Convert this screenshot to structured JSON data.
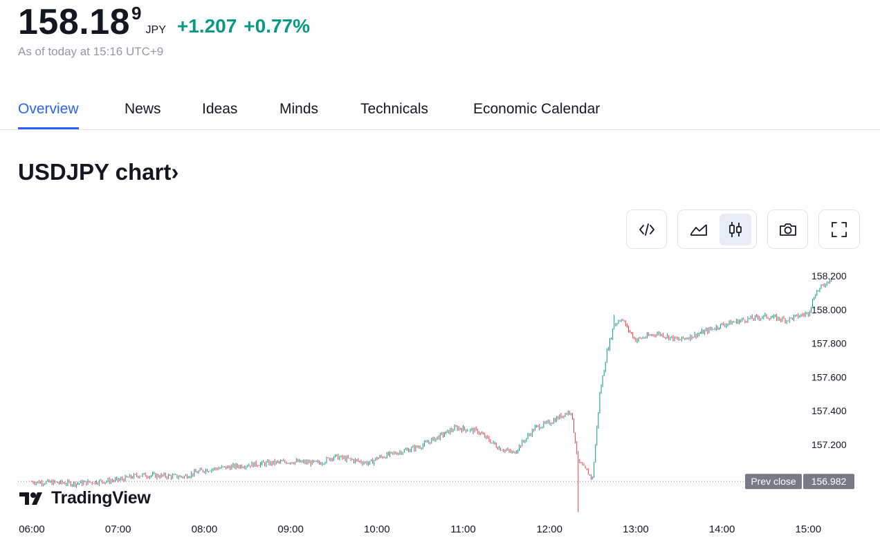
{
  "quote": {
    "price_main": "158.18",
    "price_sup": "9",
    "currency": "JPY",
    "change_abs": "+1.207",
    "change_pct": "+0.77%",
    "as_of": "As of today at 15:16 UTC+9",
    "change_color": "#089981"
  },
  "tabs": [
    {
      "label": "Overview",
      "active": true
    },
    {
      "label": "News"
    },
    {
      "label": "Ideas"
    },
    {
      "label": "Minds"
    },
    {
      "label": "Technicals"
    },
    {
      "label": "Economic Calendar"
    }
  ],
  "chart_title": "USDJPY chart›",
  "toolbar": {
    "icons": [
      "embed-code-icon",
      "area-chart-icon",
      "candlestick-icon",
      "camera-icon",
      "fullscreen-icon"
    ],
    "selected": "candlestick-icon"
  },
  "branding": {
    "logo_text": "TradingView"
  },
  "chart_data": {
    "type": "candlestick",
    "symbol": "USDJPY",
    "x_ticks": [
      "06:00",
      "07:00",
      "08:00",
      "09:00",
      "10:00",
      "11:00",
      "12:00",
      "13:00",
      "14:00",
      "15:00"
    ],
    "y_ticks": [
      "158.200",
      "158.000",
      "157.800",
      "157.600",
      "157.400",
      "157.200"
    ],
    "ylim": [
      156.78,
      158.28
    ],
    "prev_close": {
      "label": "Prev close",
      "value": "156.982"
    },
    "up_color": "#089981",
    "down_color": "#f23645",
    "close_path": [
      [
        "06:00",
        156.98
      ],
      [
        "06:30",
        156.97
      ],
      [
        "07:00",
        156.99
      ],
      [
        "07:15",
        157.02
      ],
      [
        "07:45",
        157.01
      ],
      [
        "08:00",
        157.05
      ],
      [
        "08:30",
        157.08
      ],
      [
        "08:45",
        157.09
      ],
      [
        "09:00",
        157.1
      ],
      [
        "09:20",
        157.09
      ],
      [
        "09:30",
        157.13
      ],
      [
        "09:55",
        157.09
      ],
      [
        "10:00",
        157.12
      ],
      [
        "10:30",
        157.19
      ],
      [
        "10:55",
        157.3
      ],
      [
        "11:10",
        157.28
      ],
      [
        "11:25",
        157.18
      ],
      [
        "11:35",
        157.15
      ],
      [
        "11:45",
        157.25
      ],
      [
        "11:50",
        157.3
      ],
      [
        "12:00",
        157.33
      ],
      [
        "12:10",
        157.38
      ],
      [
        "12:15",
        157.4
      ],
      [
        "12:20",
        157.1
      ],
      [
        "12:25",
        157.05
      ],
      [
        "12:30",
        157.0
      ],
      [
        "12:35",
        157.5
      ],
      [
        "12:40",
        157.75
      ],
      [
        "12:45",
        157.91
      ],
      [
        "12:50",
        157.95
      ],
      [
        "12:55",
        157.88
      ],
      [
        "13:00",
        157.82
      ],
      [
        "13:15",
        157.86
      ],
      [
        "13:30",
        157.82
      ],
      [
        "13:45",
        157.86
      ],
      [
        "14:00",
        157.91
      ],
      [
        "14:15",
        157.94
      ],
      [
        "14:30",
        157.96
      ],
      [
        "14:45",
        157.94
      ],
      [
        "15:00",
        157.98
      ],
      [
        "15:05",
        158.1
      ],
      [
        "15:15",
        158.18
      ],
      [
        "15:16",
        158.19
      ]
    ],
    "notable_wicks": [
      {
        "time": "12:20",
        "low": 156.8
      },
      {
        "time": "12:45",
        "high": 157.97
      }
    ]
  }
}
